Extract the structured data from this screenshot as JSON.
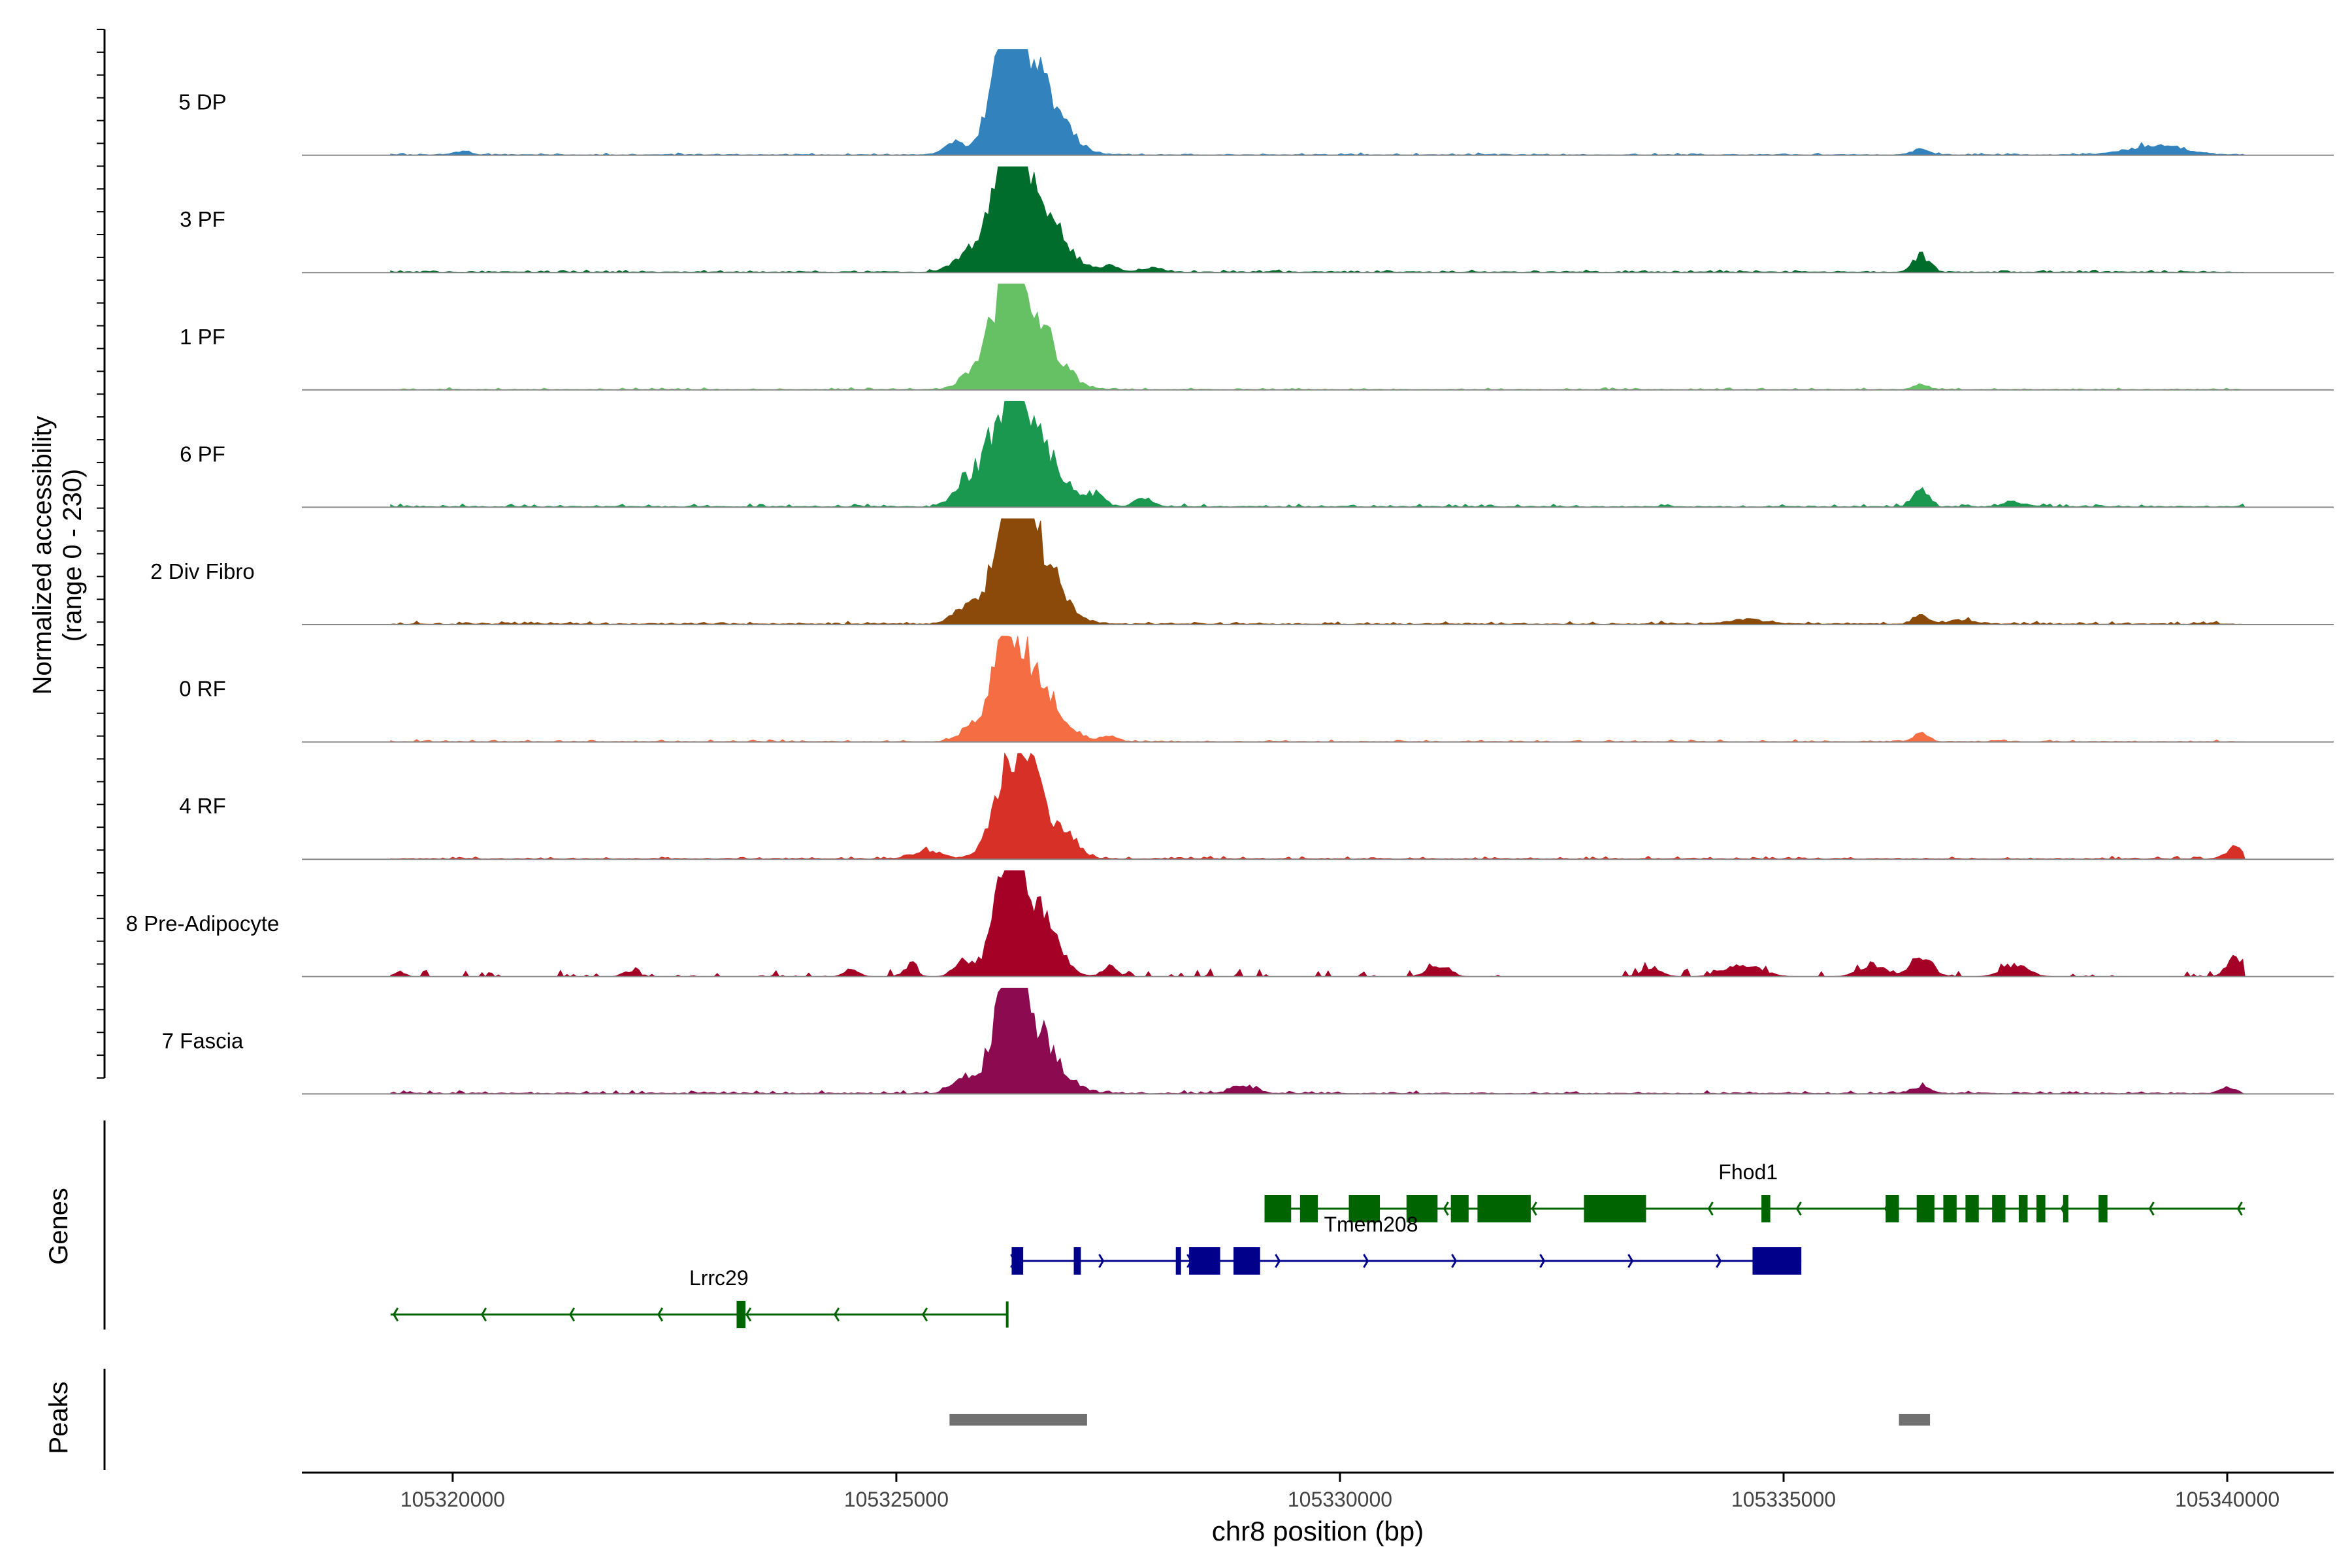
{
  "chart_data": {
    "type": "area",
    "title": "",
    "chromosome": "chr8",
    "xlabel": "chr8 position (bp)",
    "xlim": [
      105318300,
      105341200
    ],
    "xticks": [
      105320000,
      105325000,
      105330000,
      105335000,
      105340000
    ],
    "xtick_labels": [
      "105320000",
      "105325000",
      "105330000",
      "105335000",
      "105340000"
    ],
    "ylabel_line1": "Normalized accessibility",
    "ylabel_line2": "(range 0 - 230)",
    "ylim": [
      0,
      230
    ],
    "region": [
      105319300,
      105340200
    ],
    "tracks": [
      {
        "name": "5 DP",
        "color": "#3182bd",
        "peaks": [
          [
            105326250,
            230,
            170
          ],
          [
            105326550,
            170,
            280
          ],
          [
            105325650,
            25,
            120
          ],
          [
            105339200,
            22,
            300
          ],
          [
            105336550,
            14,
            90
          ],
          [
            105320100,
            8,
            90
          ]
        ],
        "noise": 4,
        "base": 1
      },
      {
        "name": "3 PF",
        "color": "#006d2c",
        "peaks": [
          [
            105326250,
            225,
            170
          ],
          [
            105326550,
            160,
            280
          ],
          [
            105325800,
            40,
            150
          ],
          [
            105336550,
            35,
            90
          ],
          [
            105327400,
            12,
            100
          ],
          [
            105327900,
            10,
            100
          ]
        ],
        "noise": 5,
        "base": 2
      },
      {
        "name": "1 PF",
        "color": "#66c164",
        "peaks": [
          [
            105326250,
            210,
            180
          ],
          [
            105326550,
            140,
            260
          ],
          [
            105325800,
            25,
            120
          ],
          [
            105336550,
            10,
            90
          ]
        ],
        "noise": 4,
        "base": 1
      },
      {
        "name": "6 PF",
        "color": "#1a9850",
        "peaks": [
          [
            105326250,
            195,
            190
          ],
          [
            105326550,
            140,
            260
          ],
          [
            105325800,
            55,
            140
          ],
          [
            105336550,
            35,
            80
          ],
          [
            105327250,
            25,
            100
          ],
          [
            105327800,
            20,
            100
          ],
          [
            105337600,
            10,
            120
          ]
        ],
        "noise": 6,
        "base": 2
      },
      {
        "name": "2 Div Fibro",
        "color": "#8c4a0a",
        "peaks": [
          [
            105326300,
            230,
            170
          ],
          [
            105326550,
            160,
            260
          ],
          [
            105325800,
            35,
            150
          ],
          [
            105336550,
            20,
            90
          ],
          [
            105334600,
            10,
            200
          ],
          [
            105337000,
            8,
            150
          ]
        ],
        "noise": 6,
        "base": 2
      },
      {
        "name": "0 RF",
        "color": "#f46d43",
        "peaks": [
          [
            105326250,
            190,
            170
          ],
          [
            105326550,
            130,
            260
          ],
          [
            105325800,
            20,
            120
          ],
          [
            105336550,
            20,
            80
          ],
          [
            105327400,
            10,
            100
          ]
        ],
        "noise": 4,
        "base": 1
      },
      {
        "name": "4 RF",
        "color": "#d73027",
        "peaks": [
          [
            105326300,
            160,
            180
          ],
          [
            105326550,
            120,
            260
          ],
          [
            105325350,
            18,
            150
          ],
          [
            105340100,
            25,
            100
          ],
          [
            105327000,
            15,
            100
          ]
        ],
        "noise": 5,
        "base": 2
      },
      {
        "name": "8 Pre-Adipocyte",
        "color": "#a50026",
        "peaks": [
          [
            105326250,
            215,
            150
          ],
          [
            105326550,
            150,
            220
          ],
          [
            105325750,
            35,
            100
          ],
          [
            105336550,
            45,
            120
          ],
          [
            105340100,
            40,
            100
          ],
          [
            105336000,
            25,
            150
          ],
          [
            105337600,
            25,
            150
          ],
          [
            105334550,
            25,
            200
          ],
          [
            105331100,
            25,
            120
          ],
          [
            105324500,
            18,
            80
          ],
          [
            105325150,
            18,
            80
          ],
          [
            105327400,
            22,
            80
          ],
          [
            105319400,
            12,
            60
          ],
          [
            105322000,
            12,
            80
          ],
          [
            105333500,
            15,
            120
          ]
        ],
        "noise": 14,
        "base": 0,
        "sparse": true
      },
      {
        "name": "7 Fascia",
        "color": "#8b0a50",
        "peaks": [
          [
            105326250,
            175,
            170
          ],
          [
            105326550,
            130,
            260
          ],
          [
            105325750,
            30,
            130
          ],
          [
            105328900,
            18,
            120
          ],
          [
            105336550,
            15,
            100
          ],
          [
            105340000,
            12,
            80
          ]
        ],
        "noise": 6,
        "base": 2
      }
    ],
    "genes_label": "Genes",
    "genes": [
      {
        "name": "Fhod1",
        "strand": "-",
        "start": 105329150,
        "end": 105340200,
        "color": "#006400",
        "exons": [
          [
            105329150,
            105329450
          ],
          [
            105329550,
            105329750
          ],
          [
            105330100,
            105330450
          ],
          [
            105330750,
            105331100
          ],
          [
            105331250,
            105331450
          ],
          [
            105331550,
            105332150
          ],
          [
            105332750,
            105333450
          ],
          [
            105334750,
            105334850
          ],
          [
            105336150,
            105336300
          ],
          [
            105336500,
            105336700
          ],
          [
            105336800,
            105336950
          ],
          [
            105337050,
            105337200
          ],
          [
            105337350,
            105337500
          ],
          [
            105337650,
            105337750
          ],
          [
            105337850,
            105337950
          ],
          [
            105338150,
            105338200
          ],
          [
            105338550,
            105338650
          ]
        ]
      },
      {
        "name": "Tmem208",
        "strand": "+",
        "start": 105326300,
        "end": 105335200,
        "color": "#00008b",
        "exons": [
          [
            105326300,
            105326430
          ],
          [
            105327000,
            105327080
          ],
          [
            105328150,
            105328200
          ],
          [
            105328300,
            105328650
          ],
          [
            105328800,
            105329100
          ],
          [
            105334650,
            105335200
          ]
        ]
      },
      {
        "name": "Lrrc29",
        "strand": "-",
        "start": 105319300,
        "end": 105326250,
        "color": "#006400",
        "exons": [
          [
            105323200,
            105323300
          ]
        ]
      }
    ],
    "peaks_label": "Peaks",
    "peak_regions": [
      [
        105325600,
        105327150
      ],
      [
        105336300,
        105336650
      ]
    ],
    "peaks_color": "#707070"
  }
}
